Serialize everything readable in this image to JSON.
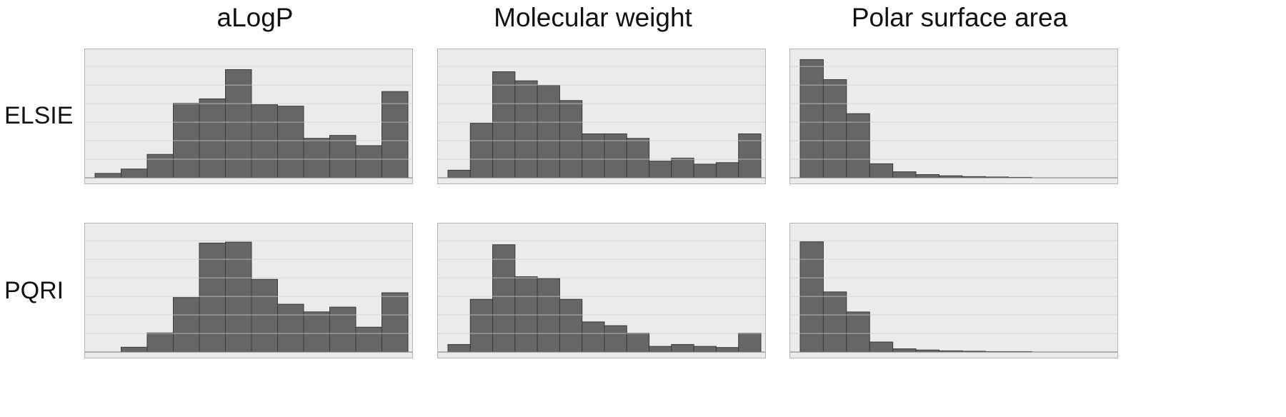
{
  "column_titles": [
    "aLogP",
    "Molecular weight",
    "Polar surface area"
  ],
  "row_labels": [
    "ELSIE",
    "PQRI"
  ],
  "colors": {
    "bar": "#666666",
    "bar_stroke": "#3a3a3a",
    "panel_bg": "#ebebeb",
    "grid": "#cfcfcf"
  },
  "chart_data": [
    {
      "type": "bar",
      "title": "aLogP",
      "row": "ELSIE",
      "grid": true,
      "ylim": [
        0,
        8.5
      ],
      "values": [
        0.3,
        0.6,
        1.6,
        5.1,
        5.4,
        7.4,
        5.0,
        4.9,
        2.7,
        2.9,
        2.2,
        5.9
      ]
    },
    {
      "type": "bar",
      "title": "Molecular weight",
      "row": "ELSIE",
      "grid": true,
      "ylim": [
        0,
        8.2
      ],
      "values": [
        0.5,
        3.6,
        7.0,
        6.4,
        6.1,
        5.1,
        2.9,
        2.9,
        2.6,
        1.1,
        1.3,
        0.9,
        1.0,
        2.9
      ]
    },
    {
      "type": "bar",
      "title": "Polar surface area",
      "row": "ELSIE",
      "grid": true,
      "ylim": [
        0,
        310
      ],
      "values": [
        295,
        245,
        160,
        35,
        15,
        8,
        5,
        3,
        2,
        1
      ]
    },
    {
      "type": "bar",
      "title": "aLogP",
      "row": "PQRI",
      "grid": true,
      "ylim": [
        0,
        130
      ],
      "values": [
        0,
        5,
        20,
        57,
        114,
        115,
        76,
        50,
        42,
        47,
        26,
        62
      ]
    },
    {
      "type": "bar",
      "title": "Molecular weight",
      "row": "PQRI",
      "grid": true,
      "ylim": [
        0,
        330
      ],
      "values": [
        20,
        140,
        285,
        200,
        195,
        140,
        80,
        70,
        50,
        15,
        20,
        15,
        12,
        50
      ]
    },
    {
      "type": "bar",
      "title": "Polar surface area",
      "row": "PQRI",
      "grid": true,
      "ylim": [
        0,
        310
      ],
      "values": [
        275,
        150,
        100,
        25,
        8,
        5,
        3,
        2,
        1,
        1
      ]
    }
  ]
}
